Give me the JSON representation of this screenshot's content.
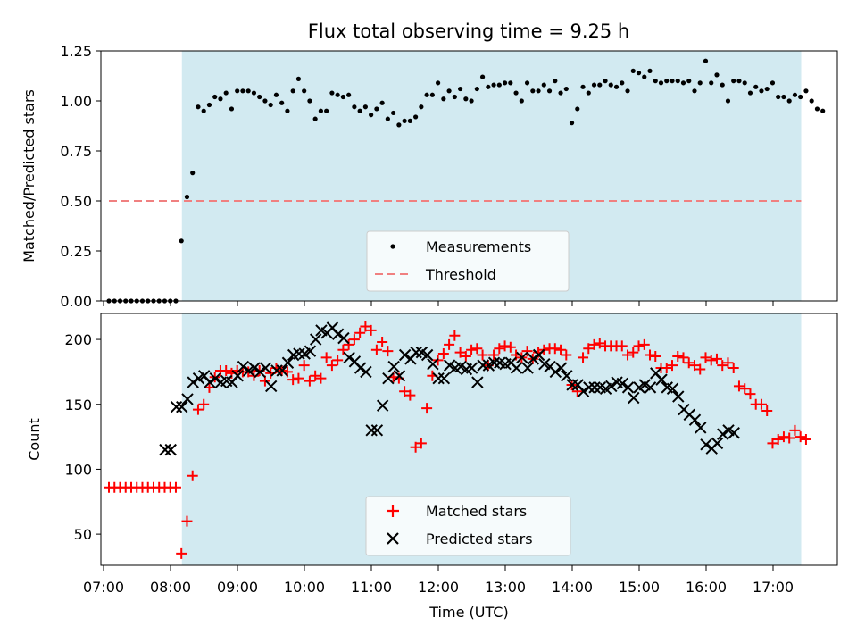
{
  "chart_data": [
    {
      "type": "scatter",
      "title": "Flux total observing time = 9.25 h",
      "xlabel": "",
      "ylabel": "Matched/Predicted stars",
      "ylim": [
        0.0,
        1.25
      ],
      "yticks": [
        "0.00",
        "0.25",
        "0.50",
        "0.75",
        "1.00",
        "1.25"
      ],
      "xlim_hours": [
        6.96,
        17.96
      ],
      "observing_window_hours": [
        8.17,
        17.42
      ],
      "threshold": {
        "name": "Threshold",
        "value": 0.5,
        "x_range_hours": [
          7.08,
          17.42
        ],
        "color": "#f08080"
      },
      "legend_position": "lower center",
      "series": [
        {
          "name": "Measurements",
          "color": "#000000",
          "x_start_hours": 7.08,
          "x_step_hours": 0.0833,
          "values": [
            0,
            0,
            0,
            0,
            0,
            0,
            0,
            0,
            0,
            0,
            0,
            0,
            0,
            0.3,
            0.52,
            0.64,
            0.97,
            0.95,
            0.98,
            1.02,
            1.01,
            1.04,
            0.96,
            1.05,
            1.05,
            1.05,
            1.04,
            1.02,
            1.0,
            0.98,
            1.03,
            0.99,
            0.95,
            1.05,
            1.11,
            1.05,
            1.0,
            0.91,
            0.95,
            0.95,
            1.04,
            1.03,
            1.02,
            1.03,
            0.97,
            0.95,
            0.97,
            0.93,
            0.96,
            0.99,
            0.91,
            0.94,
            0.88,
            0.9,
            0.9,
            0.92,
            0.97,
            1.03,
            1.03,
            1.09,
            1.01,
            1.05,
            1.02,
            1.06,
            1.01,
            1.0,
            1.06,
            1.12,
            1.07,
            1.08,
            1.08,
            1.09,
            1.09,
            1.04,
            1.0,
            1.09,
            1.05,
            1.05,
            1.08,
            1.05,
            1.1,
            1.04,
            1.06,
            0.89,
            0.96,
            1.07,
            1.04,
            1.08,
            1.08,
            1.1,
            1.08,
            1.07,
            1.09,
            1.05,
            1.15,
            1.14,
            1.12,
            1.15,
            1.1,
            1.09,
            1.1,
            1.1,
            1.1,
            1.09,
            1.1,
            1.05,
            1.09,
            1.2,
            1.09,
            1.13,
            1.08,
            1.0,
            1.1,
            1.1,
            1.09,
            1.04,
            1.07,
            1.05,
            1.06,
            1.09,
            1.02,
            1.02,
            1.0,
            1.03,
            1.02,
            1.05,
            1.0,
            0.96,
            0.95
          ]
        }
      ]
    },
    {
      "type": "scatter",
      "title": "",
      "xlabel": "Time (UTC)",
      "ylabel": "Count",
      "ylim": [
        26,
        220
      ],
      "yticks": [
        "50",
        "100",
        "150",
        "200"
      ],
      "xlim_hours": [
        6.96,
        17.96
      ],
      "xticks": [
        "07:00",
        "08:00",
        "09:00",
        "10:00",
        "11:00",
        "12:00",
        "13:00",
        "14:00",
        "15:00",
        "16:00",
        "17:00"
      ],
      "observing_window_hours": [
        8.17,
        17.42
      ],
      "legend_position": "lower center",
      "series": [
        {
          "name": "Matched stars",
          "color": "#ff0000",
          "marker": "+",
          "x_start_hours": 7.08,
          "x_step_hours": 0.0833,
          "values": [
            86,
            86,
            86,
            86,
            86,
            86,
            86,
            86,
            86,
            86,
            86,
            86,
            86,
            35,
            60,
            95,
            146,
            150,
            163,
            171,
            176,
            176,
            174,
            176,
            175,
            175,
            172,
            176,
            168,
            174,
            178,
            176,
            175,
            169,
            170,
            180,
            168,
            172,
            170,
            186,
            180,
            184,
            192,
            196,
            200,
            205,
            210,
            207,
            192,
            198,
            191,
            171,
            170,
            160,
            157,
            117,
            120,
            147,
            172,
            184,
            189,
            196,
            203,
            190,
            187,
            192,
            193,
            188,
            180,
            188,
            193,
            195,
            194,
            188,
            186,
            191,
            185,
            190,
            192,
            193,
            193,
            192,
            188,
            165,
            160,
            186,
            193,
            196,
            197,
            195,
            195,
            195,
            195,
            188,
            190,
            195,
            196,
            188,
            187,
            178,
            178,
            180,
            187,
            186,
            182,
            180,
            177,
            186,
            184,
            185,
            180,
            182,
            178,
            164,
            162,
            158,
            150,
            150,
            145,
            120,
            123,
            125,
            124,
            130,
            125,
            123
          ]
        },
        {
          "name": "Predicted stars",
          "color": "#000000",
          "marker": "x",
          "x_start_hours": 7.92,
          "x_step_hours": 0.0833,
          "values": [
            115,
            115,
            148,
            148,
            154,
            167,
            170,
            172,
            167,
            170,
            167,
            168,
            167,
            172,
            179,
            176,
            178,
            175,
            178,
            164,
            176,
            176,
            182,
            188,
            189,
            189,
            191,
            200,
            207,
            205,
            209,
            204,
            201,
            186,
            183,
            178,
            175,
            130,
            130,
            149,
            170,
            179,
            172,
            188,
            185,
            190,
            190,
            188,
            181,
            170,
            170,
            180,
            178,
            179,
            177,
            178,
            167,
            180,
            180,
            182,
            182,
            181,
            182,
            178,
            186,
            178,
            185,
            188,
            181,
            179,
            175,
            178,
            172,
            165,
            165,
            160,
            163,
            163,
            163,
            162,
            164,
            167,
            166,
            163,
            155,
            163,
            165,
            163,
            174,
            169,
            163,
            162,
            156,
            146,
            142,
            138,
            132,
            119,
            116,
            120,
            127,
            130,
            128
          ]
        }
      ]
    }
  ]
}
